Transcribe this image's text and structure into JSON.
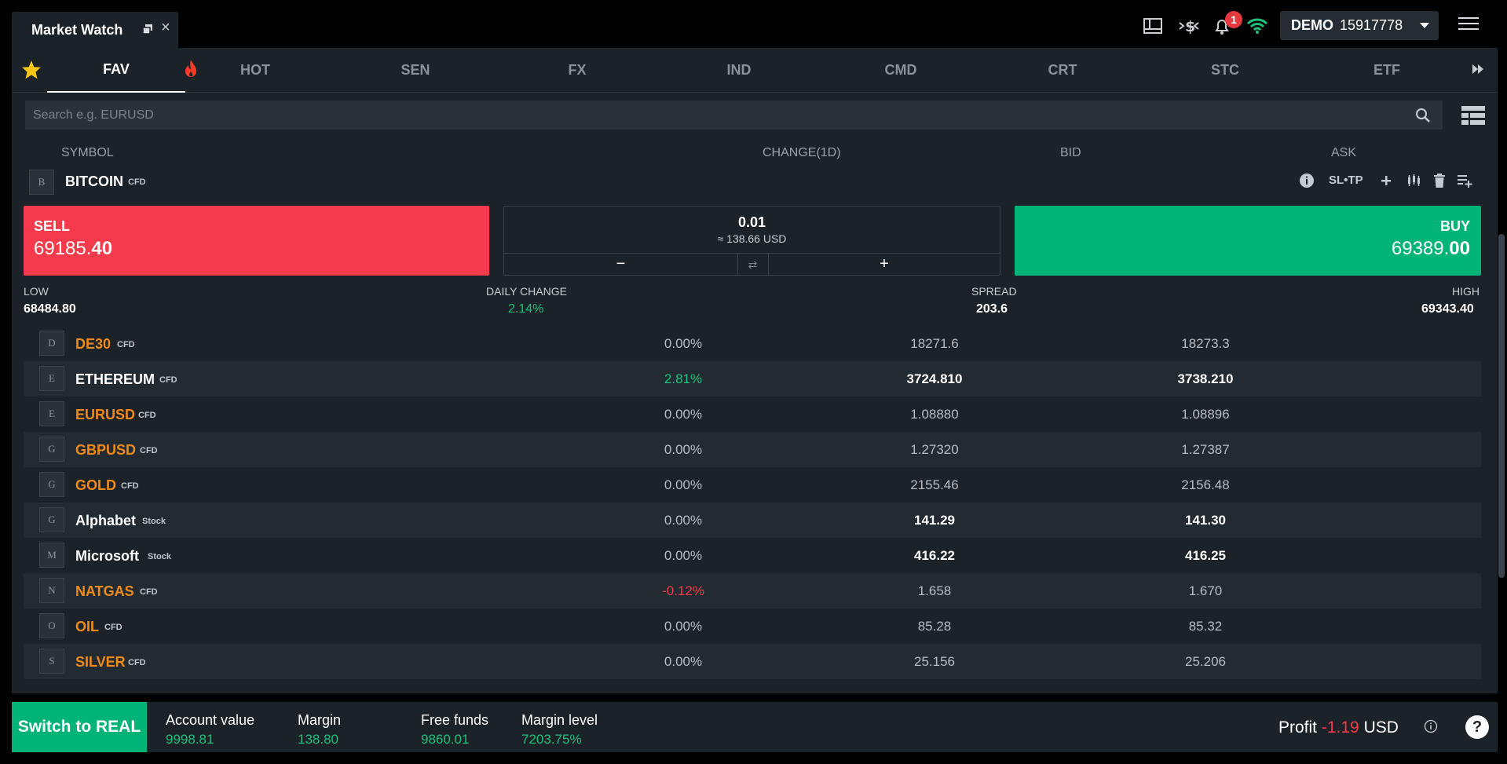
{
  "window": {
    "title": "Market Watch",
    "close_glyph": "×"
  },
  "account": {
    "mode": "DEMO",
    "number": "15917778",
    "notifications": "1"
  },
  "tabs": [
    {
      "label": "FAV"
    },
    {
      "label": "HOT"
    },
    {
      "label": "SEN"
    },
    {
      "label": "FX"
    },
    {
      "label": "IND"
    },
    {
      "label": "CMD"
    },
    {
      "label": "CRT"
    },
    {
      "label": "STC"
    },
    {
      "label": "ETF"
    }
  ],
  "search": {
    "placeholder": "Search e.g. EURUSD"
  },
  "columns": {
    "symbol": "SYMBOL",
    "change": "CHANGE(1D)",
    "bid": "BID",
    "ask": "ASK"
  },
  "selected": {
    "letter": "B",
    "name": "BITCOIN",
    "type": "CFD",
    "actions": {
      "sltp": "SL•TP"
    },
    "sell": {
      "label": "SELL",
      "price_main": "69185.",
      "price_big": "40"
    },
    "buy": {
      "label": "BUY",
      "price_main": "69389.",
      "price_big": "00"
    },
    "volume": {
      "value": "0.01",
      "usd": "≈ 138.66 USD",
      "minus": "−",
      "swap": "⇄",
      "plus": "+"
    },
    "stats": {
      "low_label": "LOW",
      "low": "68484.80",
      "daily_label": "DAILY CHANGE",
      "daily": "2.14%",
      "spread_label": "SPREAD",
      "spread": "203.6",
      "high_label": "HIGH",
      "high": "69343.40"
    }
  },
  "rows": [
    {
      "letter": "D",
      "name": "DE30",
      "type": "CFD",
      "change": "0.00%",
      "bid": "18271.6",
      "ask": "18273.3"
    },
    {
      "letter": "E",
      "name": "ETHEREUM",
      "type": "CFD",
      "change": "2.81%",
      "bid": "3724.810",
      "ask": "3738.210"
    },
    {
      "letter": "E",
      "name": "EURUSD",
      "type": "CFD",
      "change": "0.00%",
      "bid": "1.08880",
      "ask": "1.08896"
    },
    {
      "letter": "G",
      "name": "GBPUSD",
      "type": "CFD",
      "change": "0.00%",
      "bid": "1.27320",
      "ask": "1.27387"
    },
    {
      "letter": "G",
      "name": "GOLD",
      "type": "CFD",
      "change": "0.00%",
      "bid": "2155.46",
      "ask": "2156.48"
    },
    {
      "letter": "G",
      "name": "Alphabet",
      "type": "Stock",
      "change": "0.00%",
      "bid": "141.29",
      "ask": "141.30"
    },
    {
      "letter": "M",
      "name": "Microsoft",
      "type": "Stock",
      "change": "0.00%",
      "bid": "416.22",
      "ask": "416.25"
    },
    {
      "letter": "N",
      "name": "NATGAS",
      "type": "CFD",
      "change": "-0.12%",
      "bid": "1.658",
      "ask": "1.670"
    },
    {
      "letter": "O",
      "name": "OIL",
      "type": "CFD",
      "change": "0.00%",
      "bid": "85.28",
      "ask": "85.32"
    },
    {
      "letter": "S",
      "name": "SILVER",
      "type": "CFD",
      "change": "0.00%",
      "bid": "25.156",
      "ask": "25.206"
    }
  ],
  "footer": {
    "switch_label": "Switch to REAL",
    "account_value_label": "Account value",
    "account_value": "9998.81",
    "margin_label": "Margin",
    "margin": "138.80",
    "free_funds_label": "Free funds",
    "free_funds": "9860.01",
    "margin_level_label": "Margin level",
    "margin_level": "7203.75%",
    "profit_label": "Profit",
    "profit_value": "-1.19",
    "profit_currency": "USD",
    "help": "?"
  },
  "colors": {
    "sell": "#f53b4b",
    "buy": "#00b377",
    "positive": "#1ec27b",
    "negative": "#f53b4b",
    "orange_symbol": "#f08a1c",
    "panel": "#1b2228"
  }
}
